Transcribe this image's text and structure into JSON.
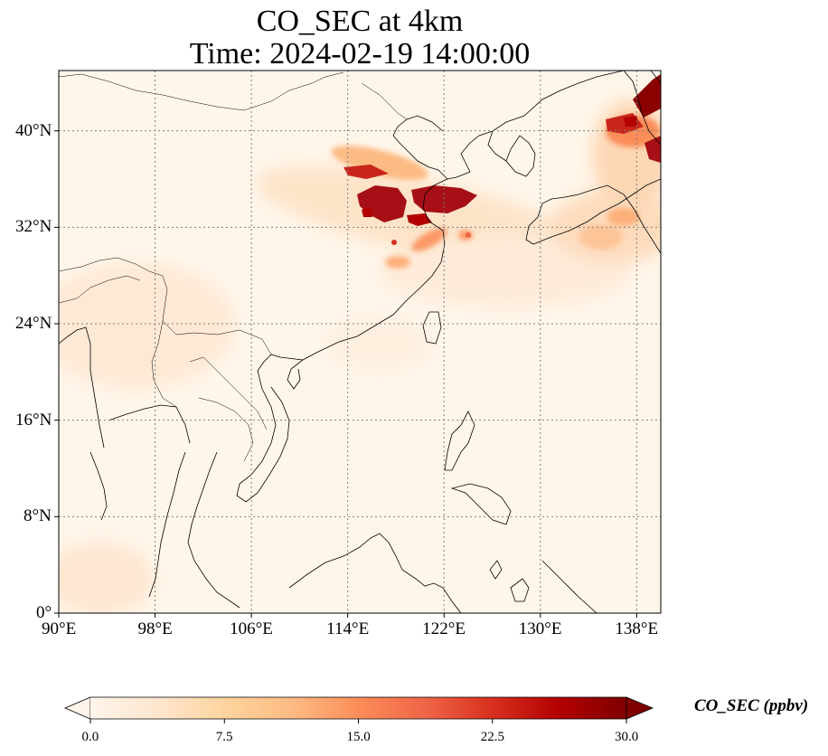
{
  "title_line1": "CO_SEC at 4km",
  "title_line2": "Time: 2024-02-19 14:00:00",
  "map": {
    "lon_range": [
      90,
      140
    ],
    "lat_range": [
      0,
      45
    ],
    "gridlines": "dotted",
    "lon_ticks": [
      "90°E",
      "98°E",
      "106°E",
      "114°E",
      "122°E",
      "130°E",
      "138°E"
    ],
    "lat_ticks": [
      "0°",
      "8°N",
      "16°N",
      "24°N",
      "32°N",
      "40°N"
    ],
    "field_color_low": "#fff5eb",
    "field_color_high": "#7f0000"
  },
  "colorbar": {
    "label": "CO_SEC (ppbv)",
    "min": 0.0,
    "max": 30.0,
    "ticks": [
      "0.0",
      "7.5",
      "15.0",
      "22.5",
      "30.0"
    ],
    "extend": "both",
    "colormap": [
      "#fff5eb",
      "#fee6ce",
      "#fdd49e",
      "#fdbb84",
      "#fc8d59",
      "#ef6548",
      "#d7301f",
      "#b30000",
      "#7f0000"
    ]
  }
}
